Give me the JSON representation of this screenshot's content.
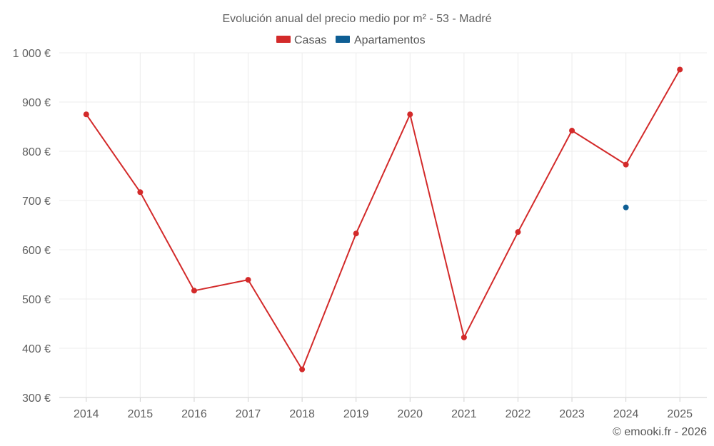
{
  "chart_data": {
    "type": "line",
    "title": "Evolución anual del precio medio por m² - 53 - Madré",
    "categories": [
      "2014",
      "2015",
      "2016",
      "2017",
      "2018",
      "2019",
      "2020",
      "2021",
      "2022",
      "2023",
      "2024",
      "2025"
    ],
    "ylim": [
      300,
      1000
    ],
    "yticks": [
      300,
      400,
      500,
      600,
      700,
      800,
      900,
      1000
    ],
    "ytick_labels": [
      "300 €",
      "400 €",
      "500 €",
      "600 €",
      "700 €",
      "800 €",
      "900 €",
      "1 000 €"
    ],
    "grid": true,
    "legend_position": "top-center",
    "series": [
      {
        "name": "Casas",
        "color": "#d32a2a",
        "values": [
          875,
          717,
          517,
          539,
          357,
          633,
          875,
          422,
          636,
          842,
          773,
          966
        ]
      },
      {
        "name": "Apartamentos",
        "color": "#0e5e94",
        "values": [
          null,
          null,
          null,
          null,
          null,
          null,
          null,
          null,
          null,
          null,
          686,
          null
        ]
      }
    ]
  },
  "credit": "© emooki.fr - 2026"
}
